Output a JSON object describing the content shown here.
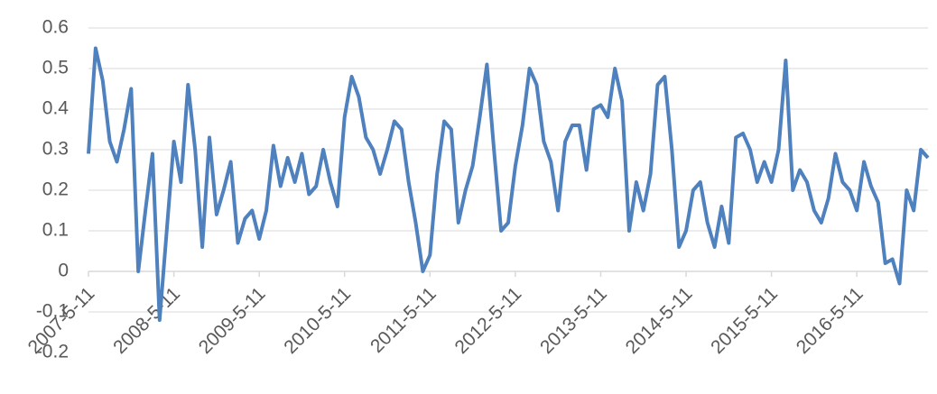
{
  "chart_data": {
    "type": "line",
    "categories": [
      "2007-5-11",
      null,
      null,
      null,
      null,
      null,
      null,
      null,
      null,
      null,
      null,
      null,
      "2008-5-11",
      null,
      null,
      null,
      null,
      null,
      null,
      null,
      null,
      null,
      null,
      null,
      "2009-5-11",
      null,
      null,
      null,
      null,
      null,
      null,
      null,
      null,
      null,
      null,
      null,
      "2010-5-11",
      null,
      null,
      null,
      null,
      null,
      null,
      null,
      null,
      null,
      null,
      null,
      "2011-5-11",
      null,
      null,
      null,
      null,
      null,
      null,
      null,
      null,
      null,
      null,
      null,
      "2012-5-11",
      null,
      null,
      null,
      null,
      null,
      null,
      null,
      null,
      null,
      null,
      null,
      "2013-5-11",
      null,
      null,
      null,
      null,
      null,
      null,
      null,
      null,
      null,
      null,
      null,
      "2014-5-11",
      null,
      null,
      null,
      null,
      null,
      null,
      null,
      null,
      null,
      null,
      null,
      "2015-5-11",
      null,
      null,
      null,
      null,
      null,
      null,
      null,
      null,
      null,
      null,
      null,
      "2016-5-11",
      null,
      null,
      null,
      null,
      null,
      null,
      null,
      null,
      null,
      null
    ],
    "series": [
      {
        "color": "#4e81bd",
        "values": [
          0.29,
          0.55,
          0.47,
          0.32,
          0.27,
          0.35,
          0.45,
          0.0,
          0.15,
          0.29,
          -0.12,
          0.1,
          0.32,
          0.22,
          0.46,
          0.3,
          0.06,
          0.33,
          0.14,
          0.2,
          0.27,
          0.07,
          0.13,
          0.15,
          0.08,
          0.15,
          0.31,
          0.21,
          0.28,
          0.22,
          0.29,
          0.19,
          0.21,
          0.3,
          0.22,
          0.16,
          0.38,
          0.48,
          0.43,
          0.33,
          0.3,
          0.24,
          0.3,
          0.37,
          0.35,
          0.22,
          0.12,
          0.0,
          0.04,
          0.24,
          0.37,
          0.35,
          0.12,
          0.2,
          0.26,
          0.38,
          0.51,
          0.3,
          0.1,
          0.12,
          0.26,
          0.36,
          0.5,
          0.46,
          0.32,
          0.27,
          0.15,
          0.32,
          0.36,
          0.36,
          0.25,
          0.4,
          0.41,
          0.38,
          0.5,
          0.42,
          0.1,
          0.22,
          0.15,
          0.24,
          0.46,
          0.48,
          0.3,
          0.06,
          0.1,
          0.2,
          0.22,
          0.12,
          0.06,
          0.16,
          0.07,
          0.33,
          0.34,
          0.3,
          0.22,
          0.27,
          0.22,
          0.3,
          0.52,
          0.2,
          0.25,
          0.22,
          0.15,
          0.12,
          0.18,
          0.29,
          0.22,
          0.2,
          0.15,
          0.27,
          0.21,
          0.17,
          0.02,
          0.03,
          -0.03,
          0.2,
          0.15,
          0.3,
          0.28
        ]
      }
    ],
    "ylim": [
      -0.2,
      0.6
    ],
    "yticks": [
      -0.2,
      -0.1,
      0,
      0.1,
      0.2,
      0.3,
      0.4,
      0.5,
      0.6
    ],
    "grid": true
  }
}
